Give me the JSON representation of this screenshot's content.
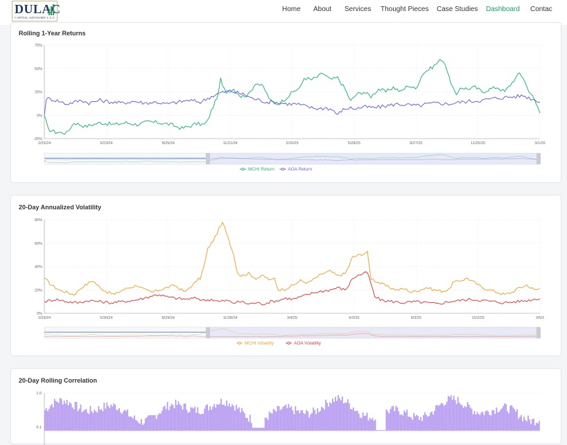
{
  "logo": {
    "main": "DULAC",
    "sub": "CAPITAL ADVISORY L.L.C."
  },
  "nav": {
    "items": [
      {
        "label": "Home",
        "active": false
      },
      {
        "label": "About",
        "active": false
      },
      {
        "label": "Services",
        "active": false
      },
      {
        "label": "Thought Pieces",
        "active": false
      },
      {
        "label": "Case Studies",
        "active": false
      },
      {
        "label": "Dashboard",
        "active": true
      },
      {
        "label": "Contac",
        "active": false
      }
    ]
  },
  "colors": {
    "mchi_return": "#1fb57a",
    "aoa_return": "#6a5de0",
    "mchi_vol": "#f0a22c",
    "aoa_vol": "#e23b3b",
    "corr": "#b497f0"
  },
  "chart_data": [
    {
      "type": "line",
      "title": "Rolling 1-Year Returns",
      "ytick_labels": [
        "75%",
        "50%",
        "25%",
        "0%",
        "-25%"
      ],
      "ylim": [
        -25,
        75
      ],
      "xtick_labels": [
        "2/25/24",
        "5/23/24",
        "8/25/24",
        "11/21/24",
        "2/26/25",
        "5/28/25",
        "8/27/25",
        "11/25/25",
        "3/1/26"
      ],
      "legend": [
        "MCHI Return",
        "AOA Return"
      ],
      "series": [
        {
          "name": "MCHI Return",
          "anchors": [
            [
              0,
              0
            ],
            [
              2,
              -15
            ],
            [
              6,
              -18
            ],
            [
              12,
              -19
            ],
            [
              16,
              -8
            ],
            [
              22,
              -12
            ],
            [
              30,
              -8
            ],
            [
              38,
              -10
            ],
            [
              44,
              -8
            ],
            [
              50,
              -10
            ],
            [
              56,
              -7
            ],
            [
              62,
              -8
            ],
            [
              68,
              -10
            ],
            [
              74,
              -14
            ],
            [
              78,
              -12
            ],
            [
              82,
              -9
            ],
            [
              86,
              -10
            ],
            [
              88,
              -6
            ],
            [
              90,
              5
            ],
            [
              92,
              14
            ],
            [
              94,
              25
            ],
            [
              95,
              40
            ],
            [
              96,
              30
            ],
            [
              98,
              25
            ],
            [
              102,
              28
            ],
            [
              106,
              20
            ],
            [
              110,
              22
            ],
            [
              114,
              35
            ],
            [
              118,
              30
            ],
            [
              122,
              15
            ],
            [
              126,
              12
            ],
            [
              130,
              18
            ],
            [
              134,
              25
            ],
            [
              138,
              30
            ],
            [
              140,
              40
            ],
            [
              144,
              38
            ],
            [
              148,
              42
            ],
            [
              150,
              45
            ],
            [
              154,
              38
            ],
            [
              158,
              40
            ],
            [
              162,
              28
            ],
            [
              165,
              15
            ],
            [
              168,
              22
            ],
            [
              172,
              25
            ],
            [
              176,
              20
            ],
            [
              180,
              28
            ],
            [
              184,
              25
            ],
            [
              188,
              30
            ],
            [
              192,
              25
            ],
            [
              196,
              32
            ],
            [
              200,
              28
            ],
            [
              204,
              45
            ],
            [
              208,
              50
            ],
            [
              210,
              53
            ],
            [
              214,
              60
            ],
            [
              216,
              55
            ],
            [
              218,
              40
            ],
            [
              220,
              30
            ],
            [
              222,
              20
            ],
            [
              224,
              30
            ],
            [
              228,
              28
            ],
            [
              232,
              30
            ],
            [
              236,
              25
            ],
            [
              240,
              28
            ],
            [
              244,
              30
            ],
            [
              248,
              25
            ],
            [
              252,
              35
            ],
            [
              256,
              45
            ],
            [
              258,
              40
            ],
            [
              260,
              30
            ],
            [
              263,
              20
            ],
            [
              266,
              8
            ],
            [
              267,
              2
            ]
          ]
        },
        {
          "name": "AOA Return",
          "anchors": [
            [
              0,
              0
            ],
            [
              1,
              18
            ],
            [
              4,
              17
            ],
            [
              8,
              15
            ],
            [
              12,
              12
            ],
            [
              16,
              14
            ],
            [
              20,
              16
            ],
            [
              24,
              13
            ],
            [
              30,
              16
            ],
            [
              36,
              14
            ],
            [
              42,
              13
            ],
            [
              48,
              15
            ],
            [
              54,
              13
            ],
            [
              60,
              14
            ],
            [
              66,
              12
            ],
            [
              72,
              14
            ],
            [
              78,
              16
            ],
            [
              84,
              14
            ],
            [
              90,
              20
            ],
            [
              95,
              24
            ],
            [
              100,
              26
            ],
            [
              104,
              24
            ],
            [
              108,
              22
            ],
            [
              112,
              18
            ],
            [
              116,
              16
            ],
            [
              120,
              14
            ],
            [
              124,
              14
            ],
            [
              128,
              13
            ],
            [
              132,
              12
            ],
            [
              136,
              12
            ],
            [
              140,
              10
            ],
            [
              144,
              8
            ],
            [
              148,
              7
            ],
            [
              152,
              8
            ],
            [
              156,
              5
            ],
            [
              158,
              0
            ],
            [
              160,
              5
            ],
            [
              164,
              8
            ],
            [
              168,
              7
            ],
            [
              172,
              9
            ],
            [
              178,
              8
            ],
            [
              184,
              10
            ],
            [
              190,
              12
            ],
            [
              196,
              11
            ],
            [
              202,
              10
            ],
            [
              206,
              12
            ],
            [
              212,
              13
            ],
            [
              218,
              12
            ],
            [
              224,
              14
            ],
            [
              230,
              15
            ],
            [
              236,
              16
            ],
            [
              242,
              18
            ],
            [
              248,
              19
            ],
            [
              254,
              20
            ],
            [
              258,
              21
            ],
            [
              262,
              18
            ],
            [
              265,
              16
            ],
            [
              267,
              15
            ]
          ]
        }
      ]
    },
    {
      "type": "line",
      "title": "20-Day Annualized Volatility",
      "ytick_labels": [
        "80%",
        "60%",
        "40%",
        "20%",
        "0%"
      ],
      "ylim": [
        0,
        80
      ],
      "xtick_labels": [
        "2/29/24",
        "5/30/24",
        "8/29/24",
        "11/28/24",
        "3/4/25",
        "6/3/25",
        "9/3/25",
        "12/2/25",
        "3/5/2"
      ],
      "legend": [
        "MCHI Volatility",
        "AOA Volatility"
      ],
      "series": [
        {
          "name": "MCHI Volatility",
          "anchors": [
            [
              0,
              30
            ],
            [
              4,
              24
            ],
            [
              8,
              20
            ],
            [
              12,
              18
            ],
            [
              16,
              16
            ],
            [
              20,
              22
            ],
            [
              24,
              26
            ],
            [
              26,
              28
            ],
            [
              30,
              22
            ],
            [
              34,
              18
            ],
            [
              38,
              16
            ],
            [
              42,
              20
            ],
            [
              46,
              22
            ],
            [
              50,
              24
            ],
            [
              54,
              20
            ],
            [
              58,
              18
            ],
            [
              62,
              20
            ],
            [
              66,
              22
            ],
            [
              70,
              24
            ],
            [
              74,
              20
            ],
            [
              76,
              18
            ],
            [
              78,
              22
            ],
            [
              80,
              24
            ],
            [
              82,
              28
            ],
            [
              84,
              30
            ],
            [
              86,
              40
            ],
            [
              88,
              55
            ],
            [
              90,
              60
            ],
            [
              92,
              65
            ],
            [
              94,
              72
            ],
            [
              96,
              77
            ],
            [
              98,
              70
            ],
            [
              100,
              60
            ],
            [
              102,
              50
            ],
            [
              104,
              35
            ],
            [
              106,
              32
            ],
            [
              110,
              34
            ],
            [
              114,
              30
            ],
            [
              118,
              32
            ],
            [
              122,
              28
            ],
            [
              124,
              30
            ],
            [
              126,
              20
            ],
            [
              130,
              21
            ],
            [
              134,
              24
            ],
            [
              138,
              28
            ],
            [
              142,
              26
            ],
            [
              146,
              30
            ],
            [
              150,
              34
            ],
            [
              154,
              36
            ],
            [
              158,
              32
            ],
            [
              162,
              34
            ],
            [
              164,
              40
            ],
            [
              166,
              48
            ],
            [
              170,
              50
            ],
            [
              174,
              52
            ],
            [
              176,
              30
            ],
            [
              178,
              28
            ],
            [
              182,
              25
            ],
            [
              186,
              22
            ],
            [
              190,
              20
            ],
            [
              194,
              21
            ],
            [
              198,
              18
            ],
            [
              202,
              20
            ],
            [
              206,
              22
            ],
            [
              210,
              20
            ],
            [
              214,
              19
            ],
            [
              218,
              20
            ],
            [
              220,
              26
            ],
            [
              224,
              28
            ],
            [
              228,
              30
            ],
            [
              232,
              26
            ],
            [
              236,
              22
            ],
            [
              240,
              20
            ],
            [
              244,
              18
            ],
            [
              248,
              16
            ],
            [
              252,
              18
            ],
            [
              256,
              22
            ],
            [
              260,
              24
            ],
            [
              264,
              20
            ],
            [
              267,
              21
            ]
          ]
        },
        {
          "name": "AOA Volatility",
          "anchors": [
            [
              0,
              10
            ],
            [
              6,
              12
            ],
            [
              12,
              10
            ],
            [
              18,
              9
            ],
            [
              24,
              11
            ],
            [
              30,
              10
            ],
            [
              36,
              9
            ],
            [
              42,
              10
            ],
            [
              48,
              11
            ],
            [
              54,
              13
            ],
            [
              58,
              15
            ],
            [
              62,
              16
            ],
            [
              66,
              14
            ],
            [
              70,
              13
            ],
            [
              76,
              12
            ],
            [
              82,
              13
            ],
            [
              86,
              11
            ],
            [
              90,
              12
            ],
            [
              94,
              10
            ],
            [
              98,
              11
            ],
            [
              102,
              9
            ],
            [
              106,
              10
            ],
            [
              110,
              8
            ],
            [
              114,
              9
            ],
            [
              118,
              8
            ],
            [
              122,
              10
            ],
            [
              126,
              11
            ],
            [
              130,
              13
            ],
            [
              134,
              12
            ],
            [
              138,
              14
            ],
            [
              142,
              16
            ],
            [
              146,
              18
            ],
            [
              150,
              19
            ],
            [
              154,
              20
            ],
            [
              158,
              22
            ],
            [
              162,
              20
            ],
            [
              164,
              24
            ],
            [
              166,
              30
            ],
            [
              170,
              33
            ],
            [
              174,
              35
            ],
            [
              176,
              25
            ],
            [
              178,
              14
            ],
            [
              182,
              11
            ],
            [
              188,
              10
            ],
            [
              194,
              9
            ],
            [
              200,
              10
            ],
            [
              206,
              9
            ],
            [
              212,
              8
            ],
            [
              218,
              10
            ],
            [
              224,
              11
            ],
            [
              230,
              12
            ],
            [
              236,
              11
            ],
            [
              242,
              10
            ],
            [
              248,
              9
            ],
            [
              254,
              10
            ],
            [
              260,
              11
            ],
            [
              264,
              12
            ],
            [
              267,
              13
            ]
          ]
        }
      ]
    },
    {
      "type": "bar",
      "title": "20-Day Rolling Correlation",
      "ytick_labels": [
        "1.0",
        "0.1"
      ],
      "ylim": [
        -0.1,
        1.0
      ]
    }
  ]
}
